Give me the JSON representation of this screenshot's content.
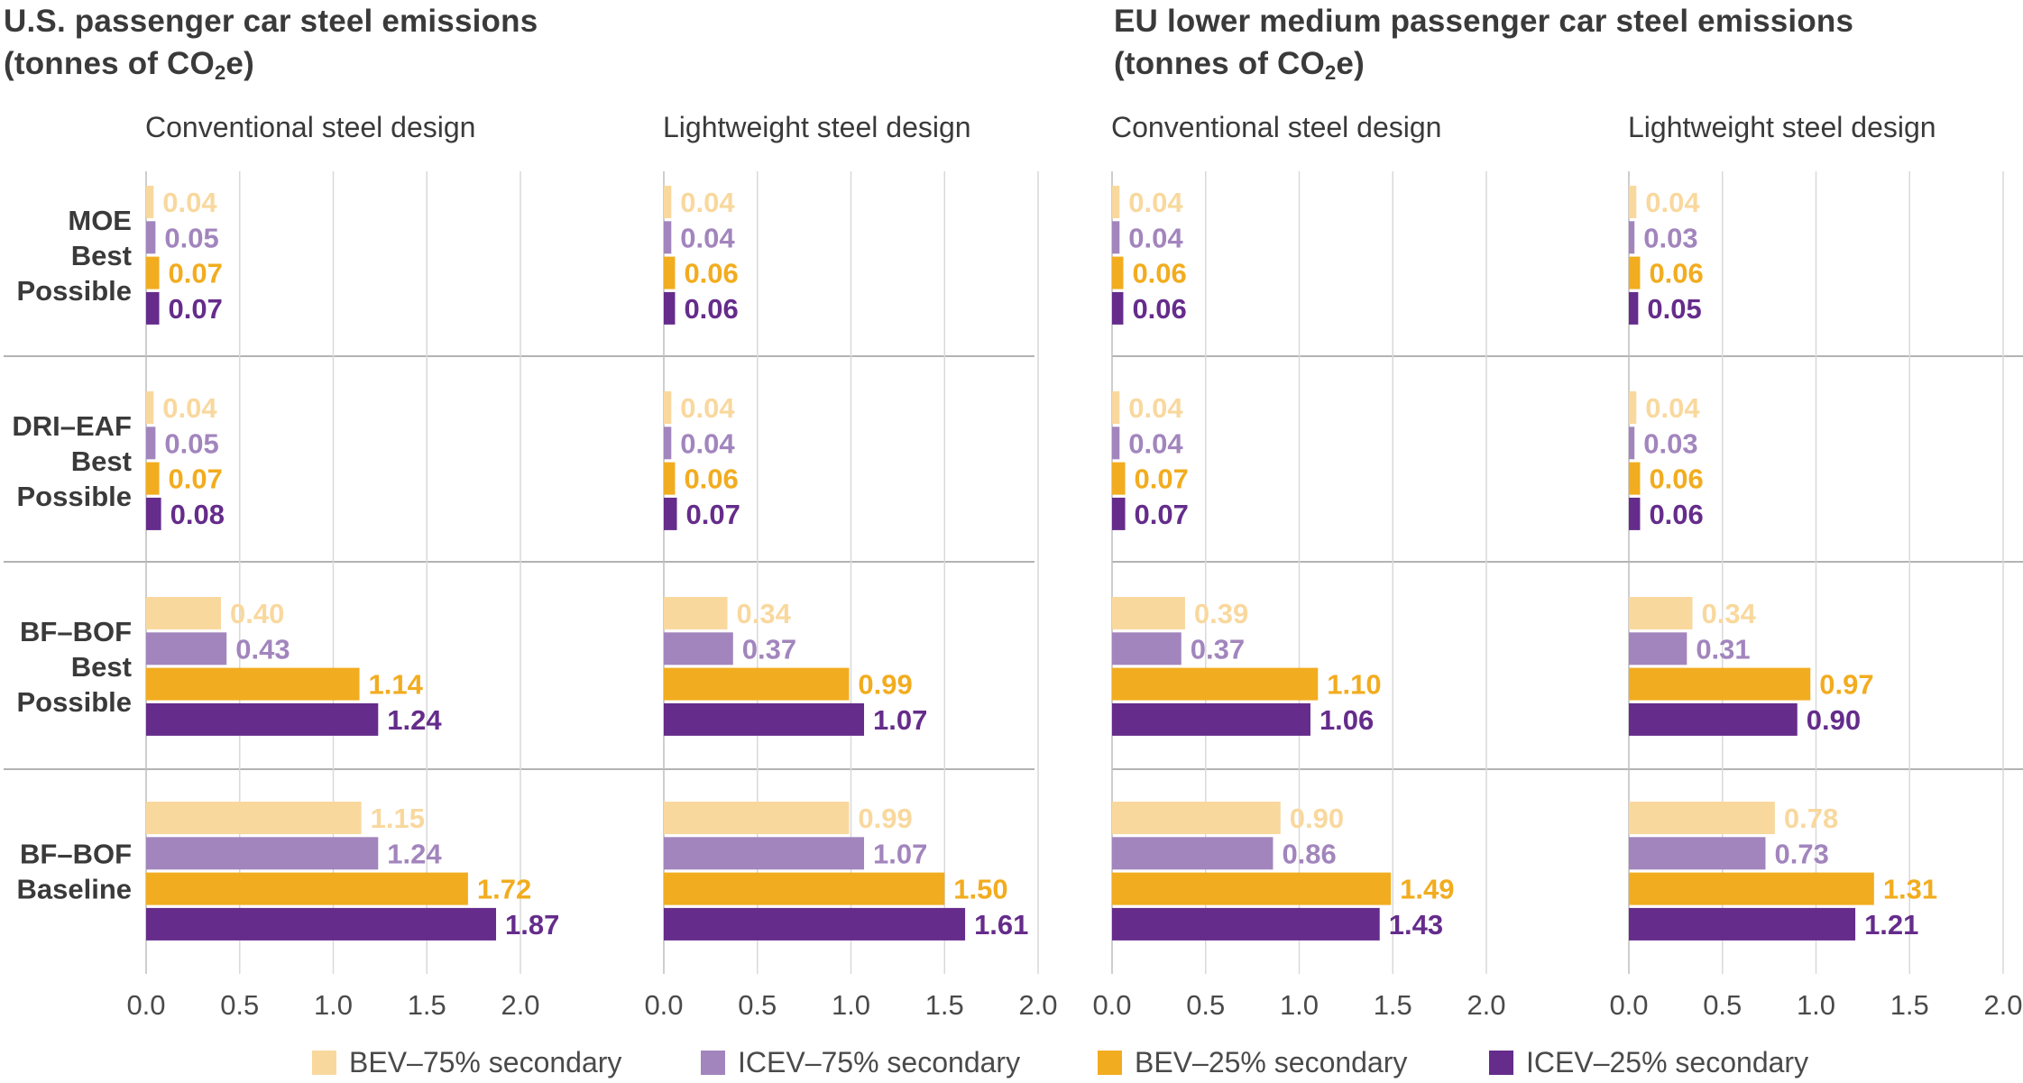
{
  "sections": [
    {
      "title_line1": "U.S. passenger car steel emissions",
      "title_pre": "(tonnes of CO",
      "title_sub": "2",
      "title_post": "e)"
    },
    {
      "title_line1": "EU lower medium passenger car steel emissions",
      "title_pre": "(tonnes of CO",
      "title_sub": "2",
      "title_post": "e)"
    }
  ],
  "legend": [
    {
      "label": "BEV–75% secondary",
      "color": "#f9d89e"
    },
    {
      "label": "ICEV–75% secondary",
      "color": "#a285bd"
    },
    {
      "label": "BEV–25% secondary",
      "color": "#f2ac1f"
    },
    {
      "label": "ICEV–25% secondary",
      "color": "#652c8b"
    }
  ],
  "chart_data": [
    {
      "type": "bar",
      "title": "Conventional steel design",
      "categories": [
        "MOE Best Possible",
        "DRI–EAF Best Possible",
        "BF–BOF Best Possible",
        "BF–BOF Baseline"
      ],
      "category_lines": [
        [
          "MOE",
          "Best",
          "Possible"
        ],
        [
          "DRI–EAF",
          "Best",
          "Possible"
        ],
        [
          "BF–BOF",
          "Best",
          "Possible"
        ],
        [
          "BF–BOF",
          "Baseline"
        ]
      ],
      "series": [
        {
          "name": "BEV–75% secondary",
          "values": [
            0.04,
            0.04,
            0.4,
            1.15
          ],
          "labels": [
            "0.04",
            "0.04",
            "0.40",
            "1.15"
          ]
        },
        {
          "name": "ICEV–75% secondary",
          "values": [
            0.05,
            0.05,
            0.43,
            1.24
          ],
          "labels": [
            "0.05",
            "0.05",
            "0.43",
            "1.24"
          ]
        },
        {
          "name": "BEV–25% secondary",
          "values": [
            0.07,
            0.07,
            1.14,
            1.72
          ],
          "labels": [
            "0.07",
            "0.07",
            "1.14",
            "1.72"
          ]
        },
        {
          "name": "ICEV–25% secondary",
          "values": [
            0.07,
            0.08,
            1.24,
            1.87
          ],
          "labels": [
            "0.07",
            "0.08",
            "1.24",
            "1.87"
          ]
        }
      ],
      "xlim": [
        0,
        2.0
      ],
      "ticks": [
        "0.0",
        "0.5",
        "1.0",
        "1.5",
        "2.0"
      ]
    },
    {
      "type": "bar",
      "title": "Lightweight steel design",
      "categories": [
        "MOE Best Possible",
        "DRI–EAF Best Possible",
        "BF–BOF Best Possible",
        "BF–BOF Baseline"
      ],
      "series": [
        {
          "name": "BEV–75% secondary",
          "values": [
            0.04,
            0.04,
            0.34,
            0.99
          ],
          "labels": [
            "0.04",
            "0.04",
            "0.34",
            "0.99"
          ]
        },
        {
          "name": "ICEV–75% secondary",
          "values": [
            0.04,
            0.04,
            0.37,
            1.07
          ],
          "labels": [
            "0.04",
            "0.04",
            "0.37",
            "1.07"
          ]
        },
        {
          "name": "BEV–25% secondary",
          "values": [
            0.06,
            0.06,
            0.99,
            1.5
          ],
          "labels": [
            "0.06",
            "0.06",
            "0.99",
            "1.50"
          ]
        },
        {
          "name": "ICEV–25% secondary",
          "values": [
            0.06,
            0.07,
            1.07,
            1.61
          ],
          "labels": [
            "0.06",
            "0.07",
            "1.07",
            "1.61"
          ]
        }
      ],
      "xlim": [
        0,
        2.0
      ],
      "ticks": [
        "0.0",
        "0.5",
        "1.0",
        "1.5",
        "2.0"
      ]
    },
    {
      "type": "bar",
      "title": "Conventional steel design",
      "categories": [
        "MOE Best Possible",
        "DRI–EAF Best Possible",
        "BF–BOF Best Possible",
        "BF–BOF Baseline"
      ],
      "series": [
        {
          "name": "BEV–75% secondary",
          "values": [
            0.04,
            0.04,
            0.39,
            0.9
          ],
          "labels": [
            "0.04",
            "0.04",
            "0.39",
            "0.90"
          ]
        },
        {
          "name": "ICEV–75% secondary",
          "values": [
            0.04,
            0.04,
            0.37,
            0.86
          ],
          "labels": [
            "0.04",
            "0.04",
            "0.37",
            "0.86"
          ]
        },
        {
          "name": "BEV–25% secondary",
          "values": [
            0.06,
            0.07,
            1.1,
            1.49
          ],
          "labels": [
            "0.06",
            "0.07",
            "1.10",
            "1.49"
          ]
        },
        {
          "name": "ICEV–25% secondary",
          "values": [
            0.06,
            0.07,
            1.06,
            1.43
          ],
          "labels": [
            "0.06",
            "0.07",
            "1.06",
            "1.43"
          ]
        }
      ],
      "xlim": [
        0,
        2.0
      ],
      "ticks": [
        "0.0",
        "0.5",
        "1.0",
        "1.5",
        "2.0"
      ]
    },
    {
      "type": "bar",
      "title": "Lightweight steel design",
      "categories": [
        "MOE Best Possible",
        "DRI–EAF Best Possible",
        "BF–BOF Best Possible",
        "BF–BOF Baseline"
      ],
      "series": [
        {
          "name": "BEV–75% secondary",
          "values": [
            0.04,
            0.04,
            0.34,
            0.78
          ],
          "labels": [
            "0.04",
            "0.04",
            "0.34",
            "0.78"
          ]
        },
        {
          "name": "ICEV–75% secondary",
          "values": [
            0.03,
            0.03,
            0.31,
            0.73
          ],
          "labels": [
            "0.03",
            "0.03",
            "0.31",
            "0.73"
          ]
        },
        {
          "name": "BEV–25% secondary",
          "values": [
            0.06,
            0.06,
            0.97,
            1.31
          ],
          "labels": [
            "0.06",
            "0.06",
            "0.97",
            "1.31"
          ]
        },
        {
          "name": "ICEV–25% secondary",
          "values": [
            0.05,
            0.06,
            0.9,
            1.21
          ],
          "labels": [
            "0.05",
            "0.06",
            "0.90",
            "1.21"
          ]
        }
      ],
      "xlim": [
        0,
        2.0
      ],
      "ticks": [
        "0.0",
        "0.5",
        "1.0",
        "1.5",
        "2.0"
      ]
    }
  ]
}
